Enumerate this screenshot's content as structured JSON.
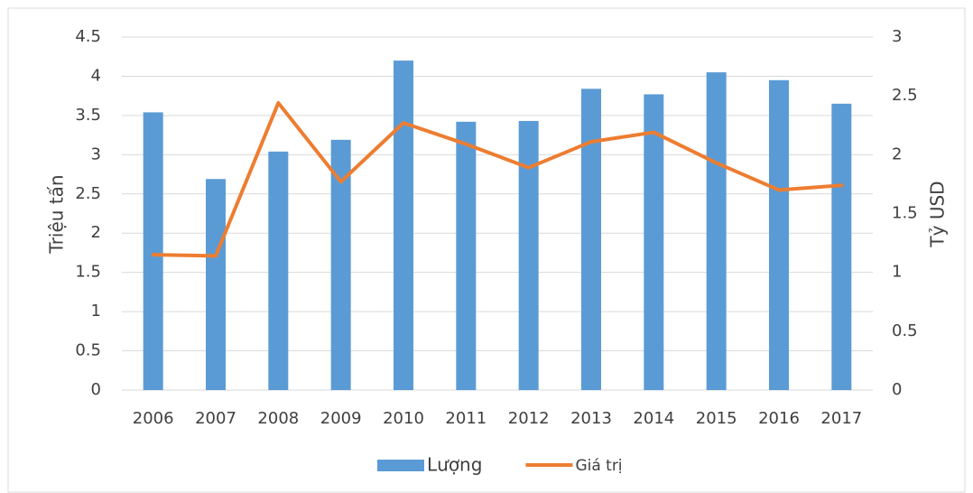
{
  "chart_data": {
    "type": "bar_line",
    "categories": [
      "2006",
      "2007",
      "2008",
      "2009",
      "2010",
      "2011",
      "2012",
      "2013",
      "2014",
      "2015",
      "2016",
      "2017"
    ],
    "series": [
      {
        "name": "Lượng",
        "type": "bar",
        "color": "#5b9bd5",
        "values": [
          3.54,
          2.69,
          3.04,
          3.19,
          4.2,
          3.42,
          3.43,
          3.84,
          3.77,
          4.05,
          3.95,
          3.65
        ]
      },
      {
        "name": "Giá trị",
        "type": "line",
        "axis": "y2",
        "color": "#ed7d31",
        "values": [
          1.15,
          1.14,
          2.44,
          1.77,
          2.27,
          2.09,
          1.89,
          2.11,
          2.19,
          1.93,
          1.7,
          1.74
        ]
      }
    ],
    "ylabel": "Triệu tấn",
    "y2label": "Tỷ USD",
    "ylim": [
      0,
      4.5
    ],
    "yticks": [
      0,
      0.5,
      1,
      1.5,
      2,
      2.5,
      3,
      3.5,
      4,
      4.5
    ],
    "y2lim": [
      0,
      3
    ],
    "y2ticks": [
      0,
      0.5,
      1,
      1.5,
      2,
      2.5,
      3
    ],
    "grid": true,
    "legend": "bottom"
  }
}
